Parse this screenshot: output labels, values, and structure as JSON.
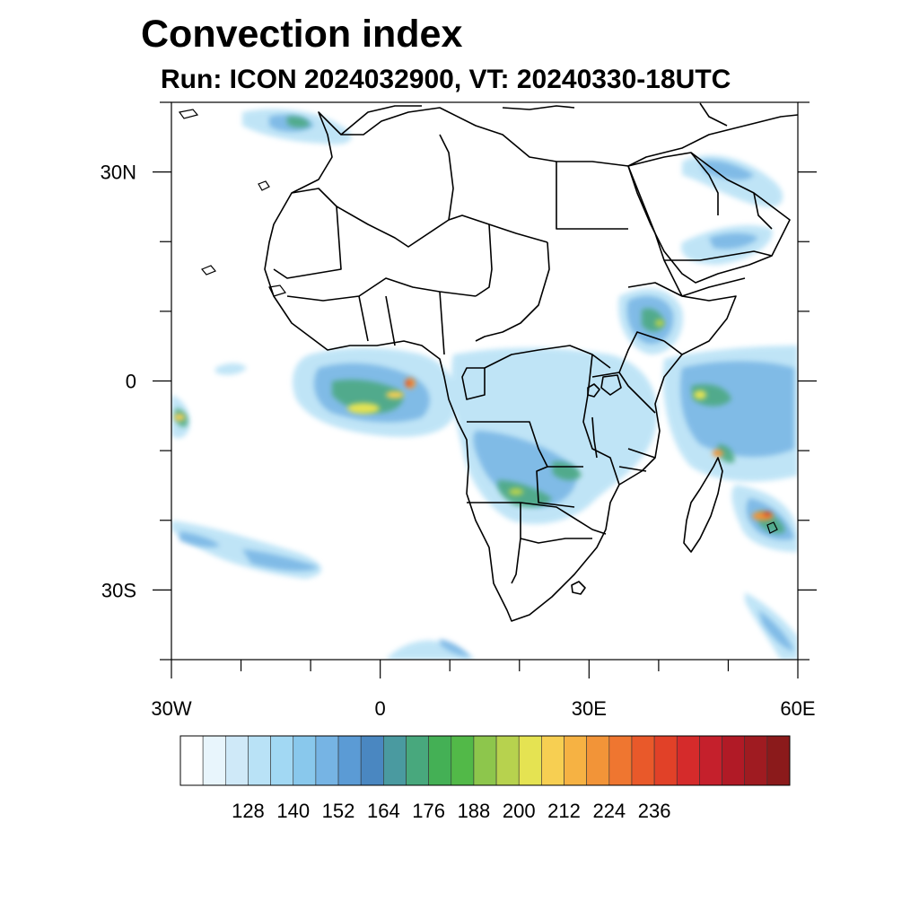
{
  "title": "Convection index",
  "subtitle": "Run: ICON 2024032900,  VT: 20240330-18UTC",
  "map": {
    "lat_labels": [
      {
        "lat": 30,
        "text": "30N"
      },
      {
        "lat": 0,
        "text": "0"
      },
      {
        "lat": -30,
        "text": "30S"
      }
    ],
    "lon_labels": [
      {
        "lon": -30,
        "text": "30W"
      },
      {
        "lon": 0,
        "text": "0"
      },
      {
        "lon": 30,
        "text": "30E"
      },
      {
        "lon": 60,
        "text": "60E"
      }
    ],
    "extent": {
      "lon_min": -30,
      "lon_max": 60,
      "lat_min": -40,
      "lat_max": 40
    }
  },
  "colorbar": {
    "colors": [
      "#ffffff",
      "#e8f5fc",
      "#cfe9f8",
      "#b9e2f6",
      "#a2d8f3",
      "#89c8ec",
      "#76b4e4",
      "#5b9bd5",
      "#4a87c1",
      "#4a9aa0",
      "#48a87d",
      "#44b055",
      "#52b948",
      "#8dc64c",
      "#b7d24e",
      "#e5e352",
      "#f7cf52",
      "#f6b243",
      "#f29438",
      "#ef7630",
      "#e9592a",
      "#e14128",
      "#d52b2b",
      "#c5202c",
      "#b11a26",
      "#9f1b21",
      "#8b1a1b"
    ],
    "labels": [
      "128",
      "140",
      "152",
      "164",
      "176",
      "188",
      "200",
      "212",
      "224",
      "236"
    ]
  }
}
